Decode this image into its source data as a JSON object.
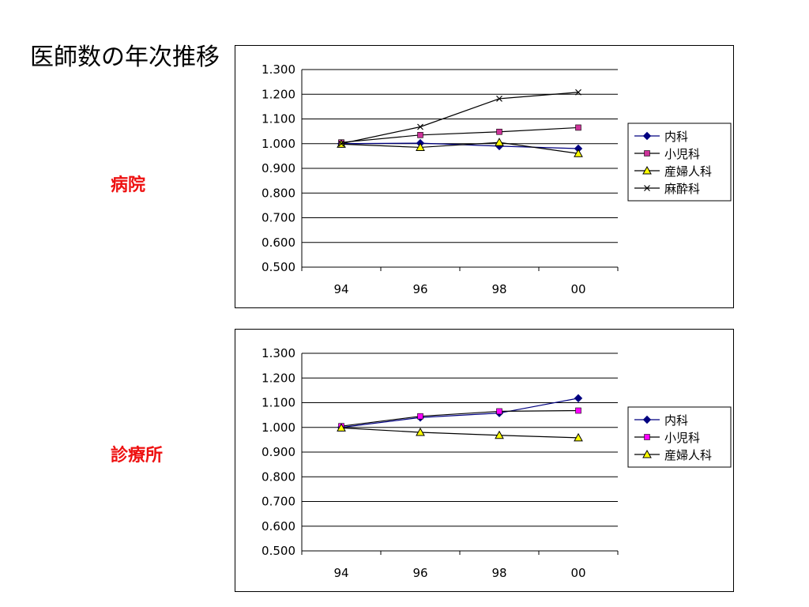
{
  "page": {
    "title": "医師数の年次推移"
  },
  "chart_data": [
    {
      "type": "line",
      "panel_label": "病院",
      "categories": [
        "94",
        "96",
        "98",
        "00"
      ],
      "ylim": [
        0.5,
        1.3
      ],
      "yticks": [
        "1.300",
        "1.200",
        "1.100",
        "1.000",
        "0.900",
        "0.800",
        "0.700",
        "0.600",
        "0.500"
      ],
      "grid": true,
      "legend_position": "right",
      "series": [
        {
          "name": "内科",
          "marker": "diamond",
          "color": "#000080",
          "values": [
            1.0,
            1.002,
            0.99,
            0.98
          ]
        },
        {
          "name": "小児科",
          "marker": "square",
          "color": "#cc3399",
          "values": [
            1.005,
            1.035,
            1.048,
            1.065
          ]
        },
        {
          "name": "産婦人科",
          "marker": "triangle",
          "color": "#ffff00",
          "values": [
            0.998,
            0.985,
            1.005,
            0.96
          ]
        },
        {
          "name": "麻酔科",
          "marker": "x",
          "color": "#000000",
          "values": [
            1.0,
            1.068,
            1.182,
            1.208
          ]
        }
      ]
    },
    {
      "type": "line",
      "panel_label": "診療所",
      "categories": [
        "94",
        "96",
        "98",
        "00"
      ],
      "ylim": [
        0.5,
        1.3
      ],
      "yticks": [
        "1.300",
        "1.200",
        "1.100",
        "1.000",
        "0.900",
        "0.800",
        "0.700",
        "0.600",
        "0.500"
      ],
      "grid": true,
      "legend_position": "right",
      "series": [
        {
          "name": "内科",
          "marker": "diamond",
          "color": "#000080",
          "values": [
            1.0,
            1.04,
            1.058,
            1.118
          ]
        },
        {
          "name": "小児科",
          "marker": "square",
          "color": "#ff00ff",
          "values": [
            1.005,
            1.045,
            1.065,
            1.068
          ]
        },
        {
          "name": "産婦人科",
          "marker": "triangle",
          "color": "#ffff00",
          "values": [
            0.998,
            0.98,
            0.968,
            0.958
          ]
        }
      ]
    }
  ]
}
